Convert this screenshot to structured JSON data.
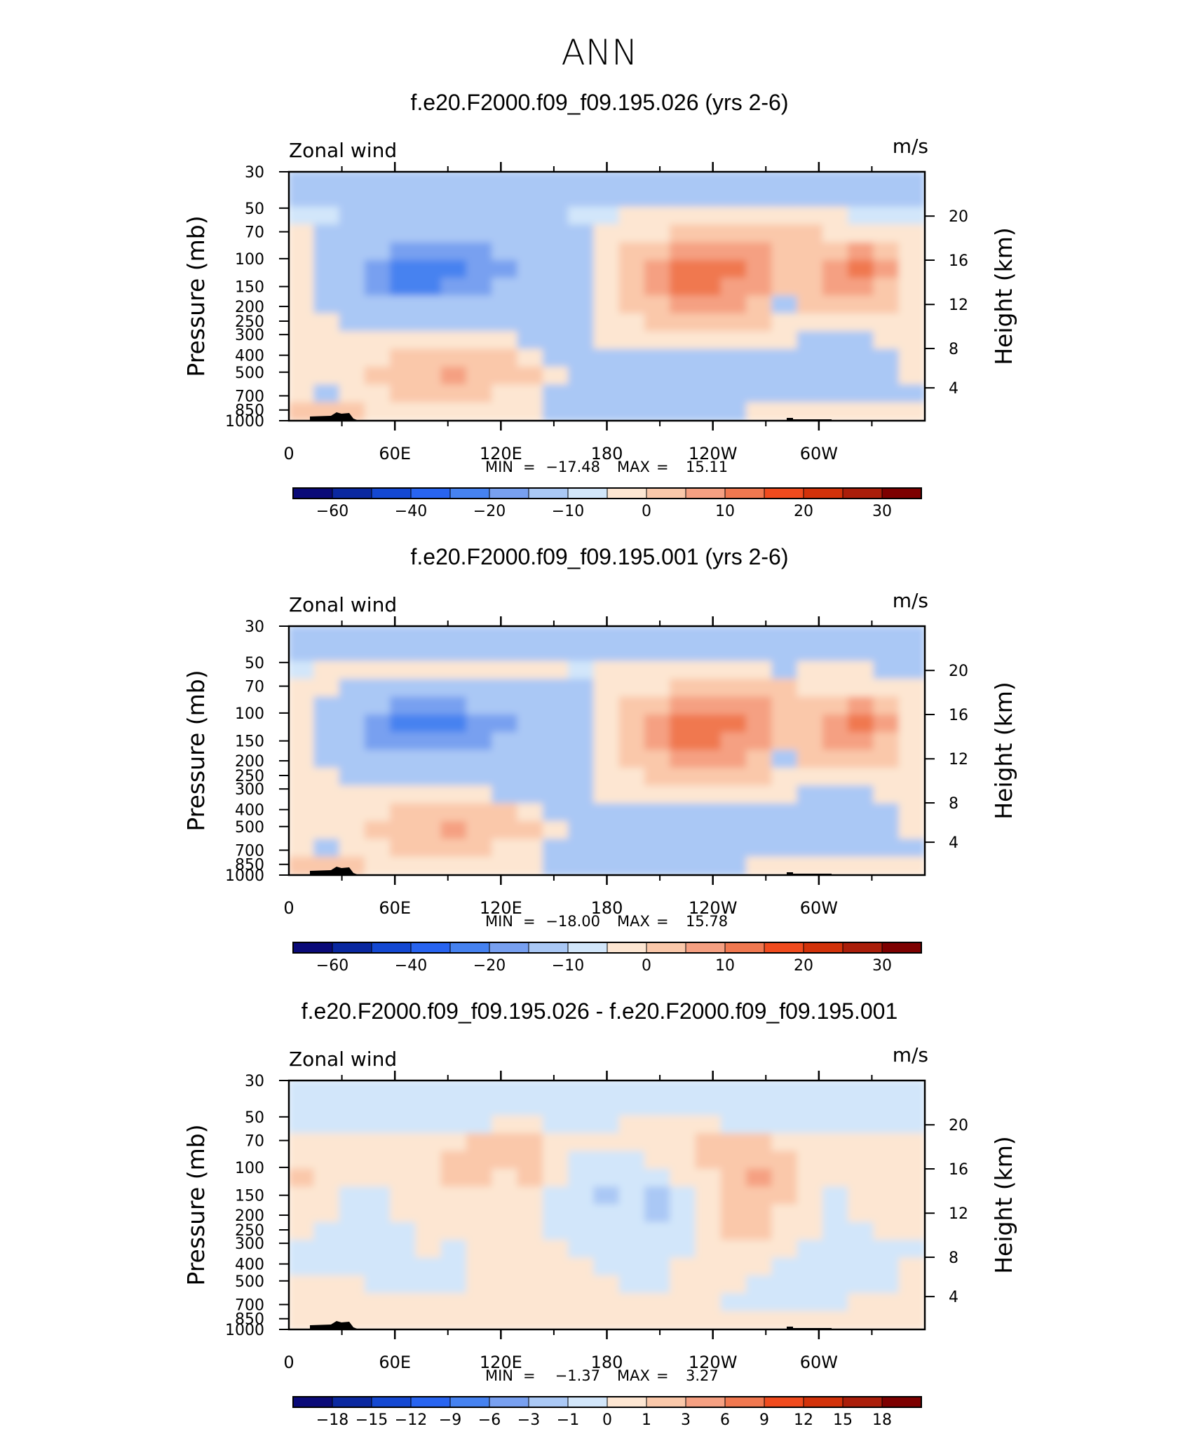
{
  "figure": {
    "main_title": "ANN"
  },
  "chart_data": [
    {
      "type": "heatmap",
      "title": "f.e20.F2000.f09_f09.195.026 (yrs 2-6)",
      "subtitle_left": "Zonal wind",
      "units": "m/s",
      "ylabel": "Pressure (mb)",
      "ylabel_right": "Height (km)",
      "x_ticks": [
        "0",
        "60E",
        "120E",
        "180",
        "120W",
        "60W"
      ],
      "y_ticks": [
        "30",
        "50",
        "70",
        "100",
        "150",
        "200",
        "250",
        "300",
        "400",
        "500",
        "700",
        "850",
        "1000"
      ],
      "y_ticks_right": [
        "20",
        "16",
        "12",
        "8",
        "4"
      ],
      "min_label": "MIN",
      "max_label": "MAX",
      "min": "−17.48",
      "max": "15.11",
      "colorbar_labels": [
        "−60",
        "−40",
        "−20",
        "−10",
        "0",
        "10",
        "20",
        "30"
      ],
      "colorbar_colors": [
        "#0a0a78",
        "#0a28a0",
        "#1448d2",
        "#2864f0",
        "#4682f0",
        "#78a0f0",
        "#aac8f5",
        "#d2e6fa",
        "#fde6d2",
        "#fac8aa",
        "#f5a082",
        "#f07850",
        "#f04b1e",
        "#d2320a",
        "#aa1e0a",
        "#7d0000"
      ],
      "field": [
        [
          -5,
          -5,
          -5,
          -5,
          -5,
          -5,
          -5,
          -5,
          -5,
          -5,
          -5,
          -5,
          -5,
          -5,
          -5,
          -5,
          -5,
          -5,
          -5,
          -5,
          -5,
          -5,
          -5,
          -5,
          -5
        ],
        [
          -5,
          -5,
          -5,
          -5,
          -5,
          -5,
          -5,
          -5,
          -5,
          -5,
          -5,
          -5,
          -5,
          -5,
          -5,
          -5,
          -5,
          -5,
          -5,
          -5,
          -5,
          -5,
          -5,
          -5,
          -5
        ],
        [
          -3,
          -3,
          -4,
          -4,
          -4,
          -4,
          -4,
          -4,
          -4,
          -4,
          -4,
          -3,
          -3,
          2,
          2,
          2,
          2,
          2,
          2,
          2,
          2,
          2,
          -3,
          -3,
          -3
        ],
        [
          2,
          -4,
          -4,
          -4,
          -4,
          -4,
          -4,
          -4,
          -4,
          -4,
          -4,
          -4,
          2,
          2,
          2,
          6,
          6,
          6,
          6,
          6,
          6,
          2,
          2,
          2,
          2
        ],
        [
          2,
          -4,
          -8,
          -8,
          -10,
          -10,
          -10,
          -10,
          -8,
          -8,
          -4,
          -4,
          2,
          6,
          6,
          12,
          12,
          12,
          12,
          6,
          6,
          6,
          12,
          6,
          2
        ],
        [
          2,
          -4,
          -8,
          -12,
          -16,
          -16,
          -16,
          -12,
          -10,
          -8,
          -4,
          -4,
          2,
          6,
          12,
          16,
          16,
          16,
          12,
          6,
          6,
          12,
          16,
          12,
          2
        ],
        [
          2,
          -4,
          -8,
          -12,
          -14,
          -14,
          -12,
          -10,
          -8,
          -8,
          -4,
          -4,
          2,
          6,
          12,
          16,
          16,
          12,
          12,
          6,
          6,
          12,
          12,
          6,
          2
        ],
        [
          2,
          -4,
          -6,
          -8,
          -8,
          -8,
          -8,
          -8,
          -6,
          -4,
          -4,
          -4,
          2,
          6,
          6,
          12,
          12,
          12,
          6,
          -4,
          6,
          6,
          6,
          6,
          2
        ],
        [
          2,
          2,
          -4,
          -4,
          -4,
          -4,
          -4,
          -4,
          -4,
          -4,
          -4,
          -4,
          2,
          2,
          6,
          6,
          6,
          6,
          6,
          2,
          2,
          2,
          2,
          2,
          2
        ],
        [
          2,
          2,
          2,
          2,
          2,
          2,
          2,
          2,
          2,
          -4,
          -4,
          -4,
          2,
          2,
          2,
          2,
          2,
          2,
          2,
          2,
          -4,
          -4,
          -4,
          2,
          2
        ],
        [
          2,
          2,
          2,
          2,
          6,
          6,
          6,
          6,
          6,
          2,
          -4,
          -4,
          -4,
          -4,
          -4,
          -4,
          -4,
          -4,
          -4,
          -4,
          -4,
          -4,
          -4,
          -4,
          2
        ],
        [
          2,
          2,
          2,
          6,
          6,
          6,
          12,
          6,
          6,
          6,
          2,
          -4,
          -4,
          -4,
          -4,
          -4,
          -4,
          -4,
          -4,
          -4,
          -4,
          -4,
          -4,
          -4,
          2
        ],
        [
          2,
          -4,
          2,
          2,
          6,
          6,
          6,
          6,
          2,
          2,
          -4,
          -4,
          -4,
          -4,
          -4,
          -8,
          -8,
          -4,
          -4,
          -4,
          -4,
          -4,
          -4,
          -4,
          -4
        ],
        [
          6,
          6,
          6,
          2,
          2,
          2,
          2,
          2,
          2,
          2,
          -4,
          -4,
          -4,
          -4,
          -4,
          -4,
          -4,
          -4,
          2,
          2,
          2,
          2,
          2,
          2,
          2
        ]
      ]
    },
    {
      "type": "heatmap",
      "title": "f.e20.F2000.f09_f09.195.001 (yrs 2-6)",
      "subtitle_left": "Zonal wind",
      "units": "m/s",
      "ylabel": "Pressure (mb)",
      "ylabel_right": "Height (km)",
      "x_ticks": [
        "0",
        "60E",
        "120E",
        "180",
        "120W",
        "60W"
      ],
      "y_ticks": [
        "30",
        "50",
        "70",
        "100",
        "150",
        "200",
        "250",
        "300",
        "400",
        "500",
        "700",
        "850",
        "1000"
      ],
      "y_ticks_right": [
        "20",
        "16",
        "12",
        "8",
        "4"
      ],
      "min_label": "MIN",
      "max_label": "MAX",
      "min": "−18.00",
      "max": "15.78",
      "colorbar_labels": [
        "−60",
        "−40",
        "−20",
        "−10",
        "0",
        "10",
        "20",
        "30"
      ],
      "colorbar_colors": [
        "#0a0a78",
        "#0a28a0",
        "#1448d2",
        "#2864f0",
        "#4682f0",
        "#78a0f0",
        "#aac8f5",
        "#d2e6fa",
        "#fde6d2",
        "#fac8aa",
        "#f5a082",
        "#f07850",
        "#f04b1e",
        "#d2320a",
        "#aa1e0a",
        "#7d0000"
      ],
      "field": [
        [
          -5,
          -5,
          -5,
          -5,
          -5,
          -5,
          -5,
          -5,
          -5,
          -5,
          -5,
          -5,
          -5,
          -5,
          -5,
          -5,
          -5,
          -5,
          -5,
          -5,
          -5,
          -5,
          -5,
          -5,
          -5
        ],
        [
          -5,
          -5,
          -5,
          -5,
          -5,
          -5,
          -5,
          -5,
          -5,
          -5,
          -5,
          -5,
          -5,
          -5,
          -5,
          -5,
          -5,
          -5,
          -5,
          -5,
          -5,
          -5,
          -5,
          -5,
          -5
        ],
        [
          -3,
          2,
          2,
          2,
          2,
          2,
          2,
          2,
          2,
          2,
          2,
          -3,
          2,
          2,
          2,
          2,
          2,
          2,
          2,
          -4,
          2,
          2,
          2,
          -4,
          -4
        ],
        [
          2,
          2,
          -4,
          -4,
          -4,
          -4,
          -4,
          -4,
          -4,
          -4,
          -4,
          -4,
          2,
          2,
          2,
          6,
          6,
          6,
          6,
          6,
          2,
          2,
          2,
          2,
          2
        ],
        [
          2,
          -4,
          -8,
          -8,
          -10,
          -10,
          -10,
          -8,
          -8,
          -8,
          -4,
          -4,
          2,
          6,
          6,
          12,
          12,
          12,
          12,
          6,
          6,
          6,
          12,
          6,
          2
        ],
        [
          2,
          -8,
          -8,
          -12,
          -16,
          -16,
          -16,
          -12,
          -10,
          -8,
          -4,
          -4,
          2,
          6,
          12,
          16,
          16,
          16,
          12,
          6,
          6,
          12,
          16,
          12,
          2
        ],
        [
          2,
          -8,
          -8,
          -10,
          -12,
          -12,
          -12,
          -10,
          -8,
          -8,
          -4,
          -4,
          2,
          6,
          12,
          16,
          16,
          12,
          12,
          6,
          6,
          12,
          12,
          6,
          2
        ],
        [
          2,
          -4,
          -4,
          -8,
          -8,
          -8,
          -8,
          -8,
          -6,
          -4,
          -4,
          -4,
          2,
          6,
          6,
          12,
          12,
          12,
          6,
          -4,
          6,
          6,
          6,
          6,
          2
        ],
        [
          2,
          2,
          -4,
          -4,
          -4,
          -4,
          -4,
          -4,
          -4,
          -4,
          -4,
          -4,
          2,
          2,
          6,
          6,
          6,
          6,
          6,
          2,
          2,
          2,
          2,
          2,
          2
        ],
        [
          2,
          2,
          2,
          2,
          2,
          2,
          2,
          2,
          -4,
          -4,
          -4,
          -4,
          2,
          2,
          2,
          2,
          2,
          2,
          2,
          2,
          -4,
          -4,
          -4,
          2,
          2
        ],
        [
          2,
          2,
          2,
          2,
          6,
          6,
          6,
          6,
          6,
          2,
          -4,
          -4,
          -4,
          -4,
          -4,
          -4,
          -4,
          -4,
          -4,
          -4,
          -4,
          -4,
          -4,
          -4,
          2
        ],
        [
          2,
          2,
          2,
          6,
          6,
          6,
          12,
          6,
          6,
          6,
          2,
          -4,
          -4,
          -4,
          -4,
          -4,
          -4,
          -4,
          -4,
          -4,
          -4,
          -4,
          -4,
          -4,
          2
        ],
        [
          2,
          -4,
          2,
          2,
          6,
          6,
          6,
          6,
          2,
          2,
          -4,
          -4,
          -4,
          -4,
          -4,
          -8,
          -8,
          -4,
          -4,
          -4,
          -4,
          -4,
          -4,
          -4,
          -4
        ],
        [
          6,
          6,
          6,
          2,
          2,
          2,
          2,
          2,
          2,
          2,
          -4,
          -4,
          -4,
          -4,
          -4,
          -4,
          -4,
          -4,
          2,
          2,
          2,
          2,
          2,
          2,
          2
        ]
      ]
    },
    {
      "type": "heatmap",
      "title": "f.e20.F2000.f09_f09.195.026 - f.e20.F2000.f09_f09.195.001",
      "subtitle_left": "Zonal wind",
      "units": "m/s",
      "ylabel": "Pressure (mb)",
      "ylabel_right": "Height (km)",
      "x_ticks": [
        "0",
        "60E",
        "120E",
        "180",
        "120W",
        "60W"
      ],
      "y_ticks": [
        "30",
        "50",
        "70",
        "100",
        "150",
        "200",
        "250",
        "300",
        "400",
        "500",
        "700",
        "850",
        "1000"
      ],
      "y_ticks_right": [
        "20",
        "16",
        "12",
        "8",
        "4"
      ],
      "min_label": "MIN",
      "max_label": "MAX",
      "min": "−1.37",
      "max": "3.27",
      "colorbar_labels": [
        "−18",
        "−15",
        "−12",
        "−9",
        "−6",
        "−3",
        "−1",
        "0",
        "1",
        "3",
        "6",
        "9",
        "12",
        "15",
        "18"
      ],
      "colorbar_colors": [
        "#0a0a78",
        "#0a28a0",
        "#1448d2",
        "#2864f0",
        "#4682f0",
        "#78a0f0",
        "#aac8f5",
        "#d2e6fa",
        "#fde6d2",
        "#fac8aa",
        "#f5a082",
        "#f07850",
        "#f04b1e",
        "#d2320a",
        "#aa1e0a",
        "#7d0000"
      ],
      "field": [
        [
          -0.5,
          -0.5,
          -0.5,
          -0.5,
          -0.5,
          -0.5,
          -0.5,
          -0.5,
          -0.5,
          -0.5,
          -0.5,
          -0.5,
          -0.5,
          -0.5,
          -0.5,
          -0.5,
          -0.5,
          -0.5,
          -0.5,
          -0.5,
          -0.5,
          -0.5,
          -0.5,
          -0.5,
          -0.5
        ],
        [
          -0.5,
          -0.5,
          -0.5,
          -0.5,
          -0.5,
          -0.5,
          -0.5,
          -0.5,
          -0.5,
          -0.5,
          -0.5,
          -0.5,
          -0.5,
          -0.5,
          -0.5,
          -0.5,
          -0.5,
          -0.5,
          -0.5,
          -0.5,
          -0.5,
          -0.5,
          -0.5,
          -0.5,
          -0.5
        ],
        [
          -0.5,
          -0.5,
          -0.5,
          -0.5,
          -0.5,
          -0.5,
          -0.5,
          -0.5,
          0.5,
          0.5,
          -0.5,
          -0.5,
          -0.5,
          0.5,
          0.5,
          0.5,
          0.5,
          -0.5,
          -0.5,
          -0.5,
          -0.5,
          -0.5,
          -0.5,
          -0.5,
          -0.5
        ],
        [
          0.5,
          0.5,
          0.5,
          0.5,
          0.5,
          0.5,
          0.5,
          2,
          2,
          2,
          0.5,
          0.5,
          0.5,
          0.5,
          0.5,
          0.5,
          2,
          2,
          2,
          0.5,
          0.5,
          0.5,
          0.5,
          0.5,
          0.5
        ],
        [
          0.5,
          0.5,
          0.5,
          0.5,
          0.5,
          0.5,
          2,
          2,
          2,
          2,
          0.5,
          -0.5,
          -0.5,
          -0.5,
          0.5,
          0.5,
          2,
          2,
          2,
          2,
          0.5,
          0.5,
          0.5,
          0.5,
          0.5
        ],
        [
          2,
          0.5,
          0.5,
          0.5,
          0.5,
          0.5,
          2,
          2,
          0.5,
          2,
          0.5,
          -0.5,
          -0.5,
          -0.5,
          -0.5,
          0.5,
          0.5,
          2,
          4,
          2,
          0.5,
          0.5,
          0.5,
          0.5,
          0.5
        ],
        [
          0.5,
          0.5,
          -0.5,
          -0.5,
          0.5,
          0.5,
          0.5,
          0.5,
          0.5,
          0.5,
          -0.5,
          -0.5,
          -2,
          -0.5,
          -2,
          -0.5,
          0.5,
          2,
          2,
          2,
          0.5,
          -0.5,
          0.5,
          0.5,
          0.5
        ],
        [
          0.5,
          0.5,
          -0.5,
          -0.5,
          0.5,
          0.5,
          0.5,
          0.5,
          0.5,
          0.5,
          -0.5,
          -0.5,
          -0.5,
          -0.5,
          -2,
          -0.5,
          0.5,
          2,
          2,
          0.5,
          0.5,
          -0.5,
          0.5,
          0.5,
          0.5
        ],
        [
          0.5,
          -0.5,
          -0.5,
          -0.5,
          -0.5,
          0.5,
          0.5,
          0.5,
          0.5,
          0.5,
          -0.5,
          -0.5,
          -0.5,
          -0.5,
          -0.5,
          -0.5,
          0.5,
          2,
          2,
          0.5,
          0.5,
          -0.5,
          -0.5,
          0.5,
          0.5
        ],
        [
          -0.5,
          -0.5,
          -0.5,
          -0.5,
          -0.5,
          0.5,
          -0.5,
          0.5,
          0.5,
          0.5,
          0.5,
          -0.5,
          -0.5,
          -0.5,
          -0.5,
          -0.5,
          0.5,
          0.5,
          0.5,
          0.5,
          -0.5,
          -0.5,
          -0.5,
          -0.5,
          -0.5
        ],
        [
          -0.5,
          -0.5,
          -0.5,
          -0.5,
          -0.5,
          -0.5,
          -0.5,
          0.5,
          0.5,
          0.5,
          0.5,
          0.5,
          -0.5,
          -0.5,
          -0.5,
          0.5,
          0.5,
          0.5,
          0.5,
          -0.5,
          -0.5,
          -0.5,
          -0.5,
          -0.5,
          0.5
        ],
        [
          0.5,
          0.5,
          0.5,
          -0.5,
          -0.5,
          -0.5,
          -0.5,
          0.5,
          0.5,
          0.5,
          0.5,
          0.5,
          0.5,
          -0.5,
          -0.5,
          0.5,
          0.5,
          0.5,
          -0.5,
          -0.5,
          -0.5,
          -0.5,
          -0.5,
          -0.5,
          0.5
        ],
        [
          0.5,
          0.5,
          0.5,
          0.5,
          0.5,
          0.5,
          0.5,
          0.5,
          0.5,
          0.5,
          0.5,
          0.5,
          0.5,
          0.5,
          0.5,
          0.5,
          0.5,
          -0.5,
          -0.5,
          -0.5,
          -0.5,
          -0.5,
          0.5,
          0.5,
          0.5
        ],
        [
          0.5,
          0.5,
          0.5,
          0.5,
          0.5,
          0.5,
          0.5,
          0.5,
          0.5,
          0.5,
          0.5,
          0.5,
          0.5,
          0.5,
          0.5,
          0.5,
          0.5,
          0.5,
          0.5,
          0.5,
          0.5,
          0.5,
          0.5,
          0.5,
          0.5
        ]
      ]
    }
  ]
}
